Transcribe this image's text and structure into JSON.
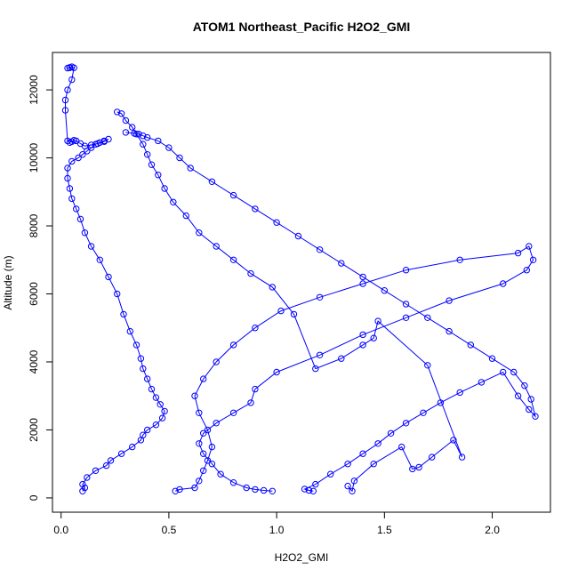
{
  "chart_data": {
    "type": "line",
    "title": "ATOM1 Northeast_Pacific H2O2_GMI",
    "xlabel": "H2O2_GMI",
    "ylabel": "Altitude (m)",
    "xlim": [
      -0.04,
      2.27
    ],
    "ylim": [
      -420,
      13100
    ],
    "xticks": [
      0.0,
      0.5,
      1.0,
      1.5,
      2.0
    ],
    "xtick_labels": [
      "0.0",
      "0.5",
      "1.0",
      "1.5",
      "2.0"
    ],
    "yticks": [
      0,
      2000,
      4000,
      6000,
      8000,
      10000,
      12000
    ],
    "ytick_labels": [
      "0",
      "2000",
      "4000",
      "6000",
      "8000",
      "10000",
      "12000"
    ],
    "grid": false,
    "legend": "none",
    "line_color": "#0000ff",
    "marker": "open-circle",
    "series": [
      {
        "x": [
          0.1,
          0.11,
          0.1,
          0.12,
          0.16,
          0.21,
          0.23,
          0.28,
          0.33,
          0.37,
          0.38,
          0.4,
          0.44,
          0.47,
          0.48,
          0.46,
          0.44,
          0.42,
          0.4,
          0.38,
          0.37,
          0.35,
          0.32,
          0.29,
          0.26,
          0.22,
          0.18,
          0.14,
          0.11,
          0.09,
          0.07,
          0.05,
          0.04,
          0.03,
          0.03,
          0.05,
          0.08,
          0.1,
          0.12,
          0.14,
          0.16,
          0.18,
          0.2,
          0.22,
          0.2,
          0.17,
          0.14,
          0.11,
          0.09,
          0.07,
          0.06,
          0.05,
          0.04,
          0.03,
          0.02,
          0.02,
          0.03,
          0.05,
          0.06,
          0.05,
          0.04,
          0.04,
          0.03
        ],
        "y": [
          200,
          300,
          400,
          600,
          800,
          950,
          1100,
          1300,
          1500,
          1700,
          1850,
          2000,
          2150,
          2350,
          2550,
          2750,
          2950,
          3200,
          3500,
          3800,
          4100,
          4500,
          4900,
          5400,
          6000,
          6500,
          7000,
          7400,
          7800,
          8200,
          8500,
          8800,
          9100,
          9400,
          9700,
          9900,
          10000,
          10100,
          10200,
          10300,
          10400,
          10450,
          10500,
          10550,
          10480,
          10420,
          10380,
          10350,
          10420,
          10500,
          10520,
          10480,
          10450,
          10500,
          11400,
          11700,
          12000,
          12300,
          12650,
          12680,
          12660,
          12650,
          12640
        ]
      },
      {
        "x": [
          0.53,
          0.55,
          0.62,
          0.64,
          0.66,
          0.68,
          0.7,
          0.68,
          0.64,
          0.62,
          0.66,
          0.72,
          0.8,
          0.9,
          1.02,
          1.2,
          1.4,
          1.6,
          1.85,
          2.12,
          2.17,
          2.19,
          2.16,
          2.05,
          1.8,
          1.6,
          1.4,
          1.2,
          1.0,
          0.9,
          0.88,
          0.8,
          0.72,
          0.66,
          0.64,
          0.66,
          0.7,
          0.74,
          0.8,
          0.86,
          0.9,
          0.94,
          0.98
        ],
        "y": [
          200,
          250,
          300,
          500,
          800,
          1100,
          1500,
          2000,
          2500,
          3000,
          3500,
          4000,
          4500,
          5000,
          5500,
          5900,
          6300,
          6700,
          7000,
          7200,
          7400,
          7000,
          6700,
          6300,
          5800,
          5300,
          4800,
          4200,
          3700,
          3200,
          2800,
          2500,
          2200,
          1900,
          1600,
          1300,
          1000,
          700,
          450,
          300,
          250,
          220,
          200
        ]
      },
      {
        "x": [
          1.17,
          1.15,
          1.13,
          1.18,
          1.25,
          1.33,
          1.4,
          1.47,
          1.53,
          1.6,
          1.68,
          1.76,
          1.85,
          1.95,
          2.05,
          2.12,
          2.17,
          2.2,
          2.18,
          2.15,
          2.1,
          2.0,
          1.9,
          1.8,
          1.7,
          1.6,
          1.5,
          1.4,
          1.3,
          1.2,
          1.1,
          1.0,
          0.9,
          0.8,
          0.7,
          0.6,
          0.55,
          0.5,
          0.45,
          0.4,
          0.38,
          0.36,
          0.34,
          0.3
        ],
        "y": [
          200,
          220,
          260,
          400,
          700,
          1000,
          1300,
          1600,
          1900,
          2200,
          2500,
          2800,
          3100,
          3400,
          3700,
          3000,
          2600,
          2400,
          2900,
          3300,
          3700,
          4100,
          4500,
          4900,
          5300,
          5700,
          6100,
          6500,
          6900,
          7300,
          7700,
          8100,
          8500,
          8900,
          9300,
          9700,
          10000,
          10300,
          10500,
          10600,
          10650,
          10700,
          10720,
          10750
        ]
      },
      {
        "x": [
          1.33,
          1.35,
          1.36,
          1.45,
          1.58,
          1.63,
          1.66,
          1.72,
          1.82,
          1.86,
          1.7,
          1.47,
          1.45,
          1.4,
          1.3,
          1.18,
          1.08,
          0.98,
          0.88,
          0.8,
          0.72,
          0.64,
          0.58,
          0.52,
          0.48,
          0.45,
          0.42,
          0.4,
          0.38,
          0.35,
          0.33,
          0.3,
          0.28,
          0.26
        ],
        "y": [
          350,
          200,
          500,
          1000,
          1500,
          850,
          900,
          1200,
          1700,
          1200,
          3900,
          5200,
          4700,
          4500,
          4100,
          3800,
          5400,
          6200,
          6600,
          7000,
          7400,
          7800,
          8300,
          8700,
          9100,
          9500,
          9800,
          10100,
          10400,
          10700,
          10900,
          11100,
          11300,
          11350
        ]
      }
    ]
  }
}
